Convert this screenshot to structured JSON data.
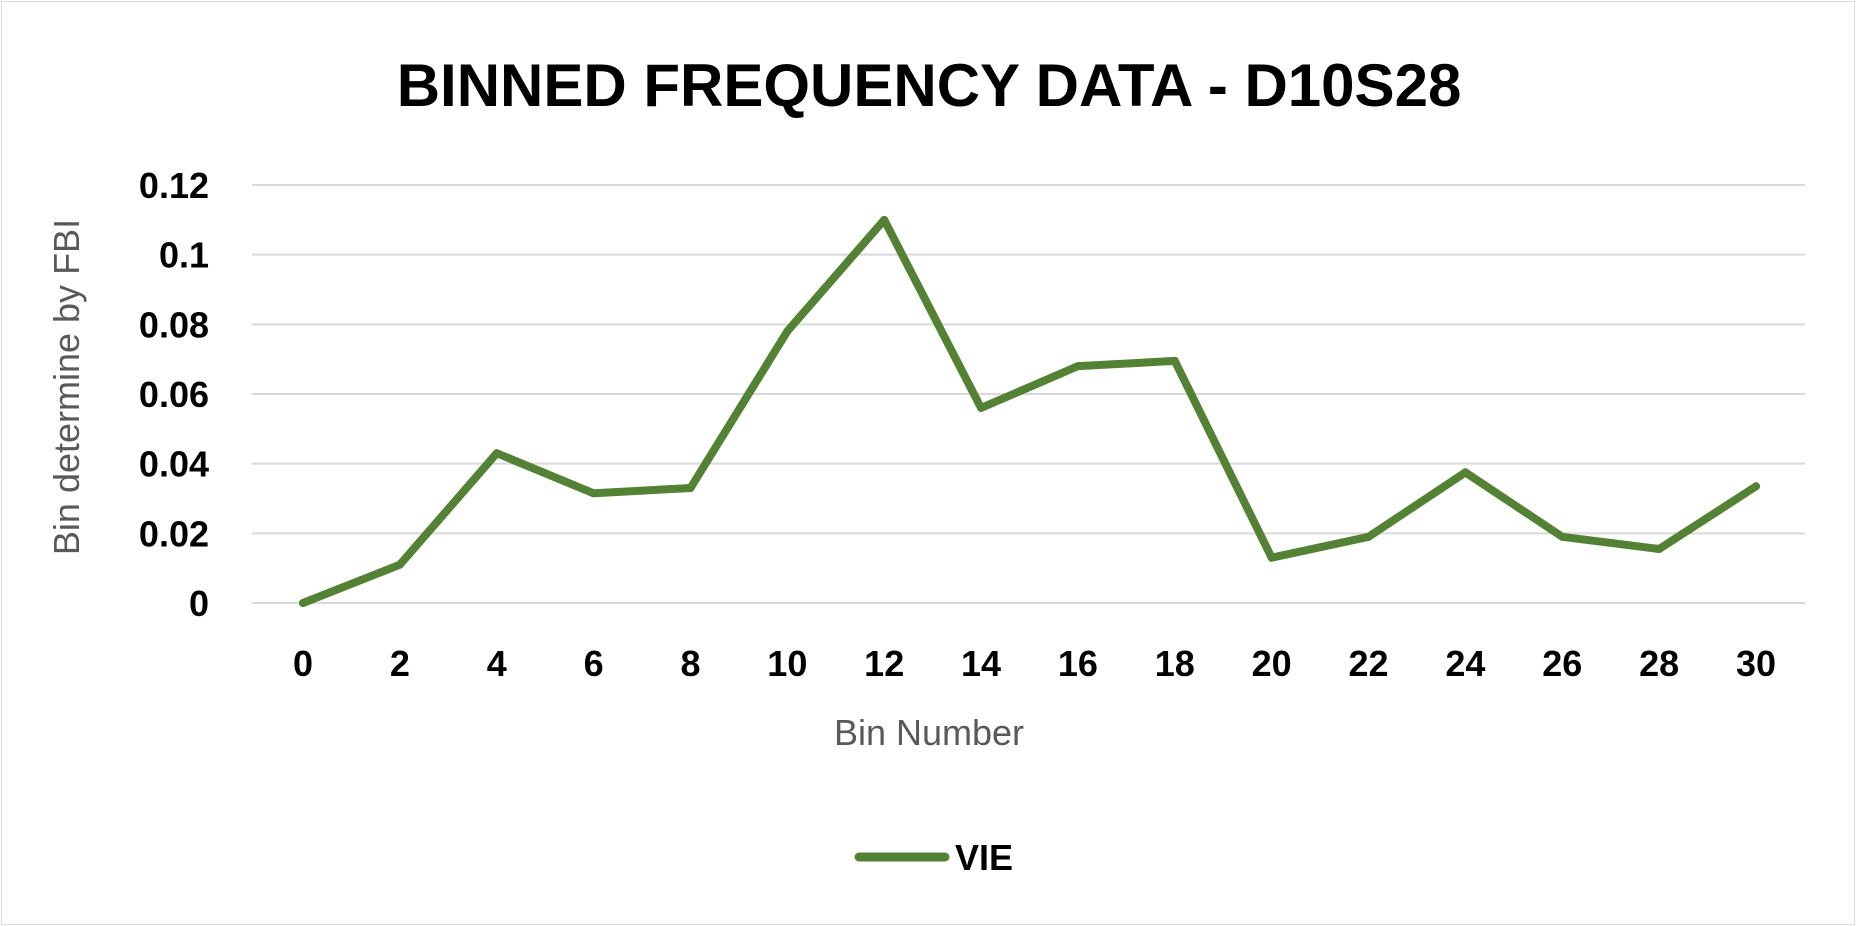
{
  "chart_data": {
    "type": "line",
    "title": "BINNED FREQUENCY DATA - D10S28",
    "xlabel": "Bin Number",
    "ylabel": "Bin determine by FBI",
    "x": [
      0,
      2,
      4,
      6,
      8,
      10,
      12,
      14,
      16,
      18,
      20,
      22,
      24,
      26,
      28,
      30
    ],
    "x_tick_labels": [
      "0",
      "2",
      "4",
      "6",
      "8",
      "10",
      "12",
      "14",
      "16",
      "18",
      "20",
      "22",
      "24",
      "26",
      "28",
      "30"
    ],
    "y_tick_labels": [
      "0",
      "0.02",
      "0.04",
      "0.06",
      "0.08",
      "0.1",
      "0.12"
    ],
    "y_ticks": [
      0,
      0.02,
      0.04,
      0.06,
      0.08,
      0.1,
      0.12
    ],
    "ylim": [
      0,
      0.12
    ],
    "grid": true,
    "legend_position": "bottom",
    "series": [
      {
        "name": "VIE",
        "color": "#548235",
        "values": [
          0,
          0.011,
          0.043,
          0.0315,
          0.033,
          0.078,
          0.11,
          0.056,
          0.068,
          0.0695,
          0.013,
          0.019,
          0.0375,
          0.019,
          0.0155,
          0.0335
        ]
      }
    ]
  }
}
